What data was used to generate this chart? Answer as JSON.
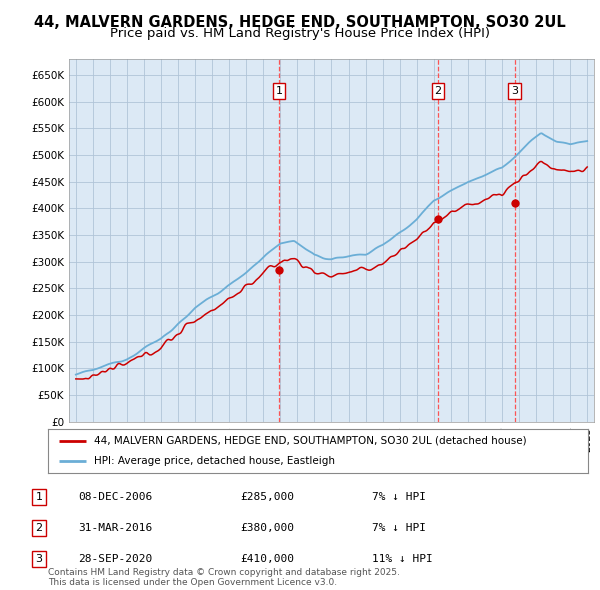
{
  "title": "44, MALVERN GARDENS, HEDGE END, SOUTHAMPTON, SO30 2UL",
  "subtitle": "Price paid vs. HM Land Registry's House Price Index (HPI)",
  "title_fontsize": 10.5,
  "subtitle_fontsize": 9.5,
  "ylim": [
    0,
    680000
  ],
  "yticks": [
    0,
    50000,
    100000,
    150000,
    200000,
    250000,
    300000,
    350000,
    400000,
    450000,
    500000,
    550000,
    600000,
    650000
  ],
  "ytick_labels": [
    "£0",
    "£50K",
    "£100K",
    "£150K",
    "£200K",
    "£250K",
    "£300K",
    "£350K",
    "£400K",
    "£450K",
    "£500K",
    "£550K",
    "£600K",
    "£650K"
  ],
  "hpi_color": "#6baed6",
  "price_color": "#cc0000",
  "chart_bg_color": "#dce9f5",
  "sale_marker_color": "#cc0000",
  "sale_dates": [
    2006.93,
    2016.25,
    2020.74
  ],
  "sale_prices": [
    285000,
    380000,
    410000
  ],
  "sale_labels": [
    "1",
    "2",
    "3"
  ],
  "vline_color": "#ff4444",
  "background_color": "#ffffff",
  "grid_color": "#b0c4d8",
  "legend_line1": "44, MALVERN GARDENS, HEDGE END, SOUTHAMPTON, SO30 2UL (detached house)",
  "legend_line2": "HPI: Average price, detached house, Eastleigh",
  "table_entries": [
    {
      "num": "1",
      "date": "08-DEC-2006",
      "price": "£285,000",
      "hpi": "7% ↓ HPI"
    },
    {
      "num": "2",
      "date": "31-MAR-2016",
      "price": "£380,000",
      "hpi": "7% ↓ HPI"
    },
    {
      "num": "3",
      "date": "28-SEP-2020",
      "price": "£410,000",
      "hpi": "11% ↓ HPI"
    }
  ],
  "footer": "Contains HM Land Registry data © Crown copyright and database right 2025.\nThis data is licensed under the Open Government Licence v3.0.",
  "xlim_start": 1994.6,
  "xlim_end": 2025.4
}
